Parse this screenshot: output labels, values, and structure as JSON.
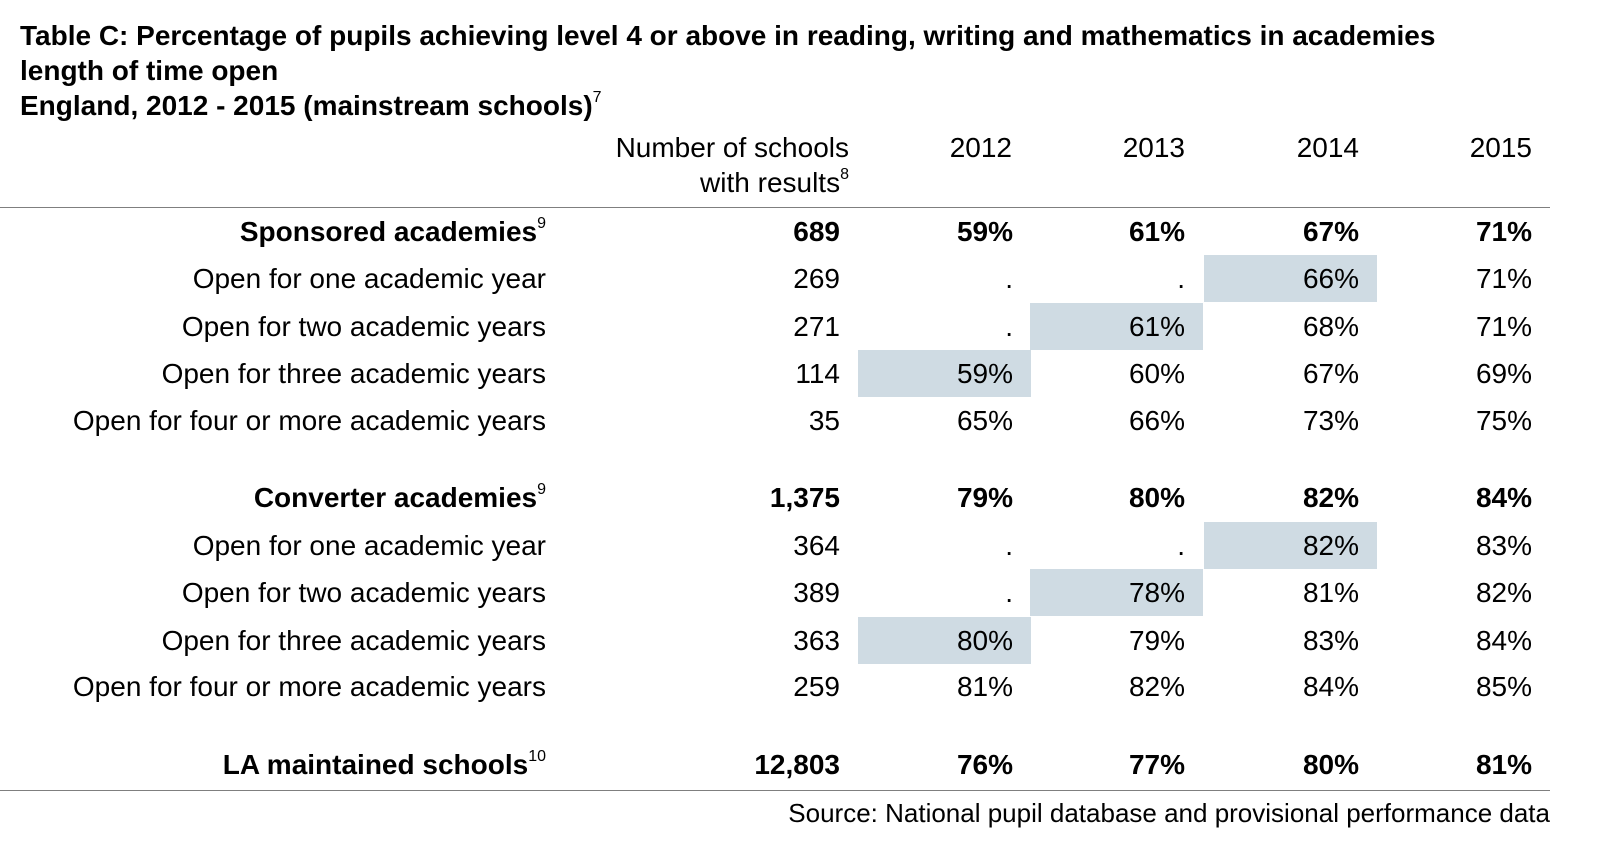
{
  "title": {
    "line1": "Table C: Percentage of pupils achieving level 4 or above in reading, writing and mathematics in academies",
    "line2": "length of time open",
    "line3": "England, 2012 - 2015 (mainstream schools)",
    "line3_note": "7"
  },
  "columns": {
    "schools_line1": "Number of schools",
    "schools_line2": "with results",
    "schools_note": "8",
    "years": [
      "2012",
      "2013",
      "2014",
      "2015"
    ]
  },
  "highlight_color": "#cfdbe3",
  "rows": [
    {
      "label": "Sponsored academies",
      "note": "9",
      "n": "689",
      "v": [
        "59%",
        "61%",
        "67%",
        "71%"
      ],
      "bold": true
    },
    {
      "label": "Open for one academic year",
      "n": "269",
      "v": [
        ".",
        ".",
        "66%",
        "71%"
      ],
      "highlight": 2
    },
    {
      "label": "Open for two academic years",
      "n": "271",
      "v": [
        ".",
        "61%",
        "68%",
        "71%"
      ],
      "highlight": 1
    },
    {
      "label": "Open for three academic years",
      "n": "114",
      "v": [
        "59%",
        "60%",
        "67%",
        "69%"
      ],
      "highlight": 0
    },
    {
      "label": "Open for four or more academic years",
      "n": "35",
      "v": [
        "65%",
        "66%",
        "73%",
        "75%"
      ]
    },
    {
      "label": "Converter academies",
      "note": "9",
      "n": "1,375",
      "v": [
        "79%",
        "80%",
        "82%",
        "84%"
      ],
      "bold": true
    },
    {
      "label": "Open for one academic year",
      "n": "364",
      "v": [
        ".",
        ".",
        "82%",
        "83%"
      ],
      "highlight": 2
    },
    {
      "label": "Open for two academic years",
      "n": "389",
      "v": [
        ".",
        "78%",
        "81%",
        "82%"
      ],
      "highlight": 1
    },
    {
      "label": "Open for three academic years",
      "n": "363",
      "v": [
        "80%",
        "79%",
        "83%",
        "84%"
      ],
      "highlight": 0
    },
    {
      "label": "Open for four or more academic years",
      "n": "259",
      "v": [
        "81%",
        "82%",
        "84%",
        "85%"
      ]
    },
    {
      "label": "LA maintained schools",
      "note": "10",
      "n": "12,803",
      "v": [
        "76%",
        "77%",
        "80%",
        "81%"
      ],
      "bold": true
    }
  ],
  "source": "Source: National pupil database and provisional performance data"
}
